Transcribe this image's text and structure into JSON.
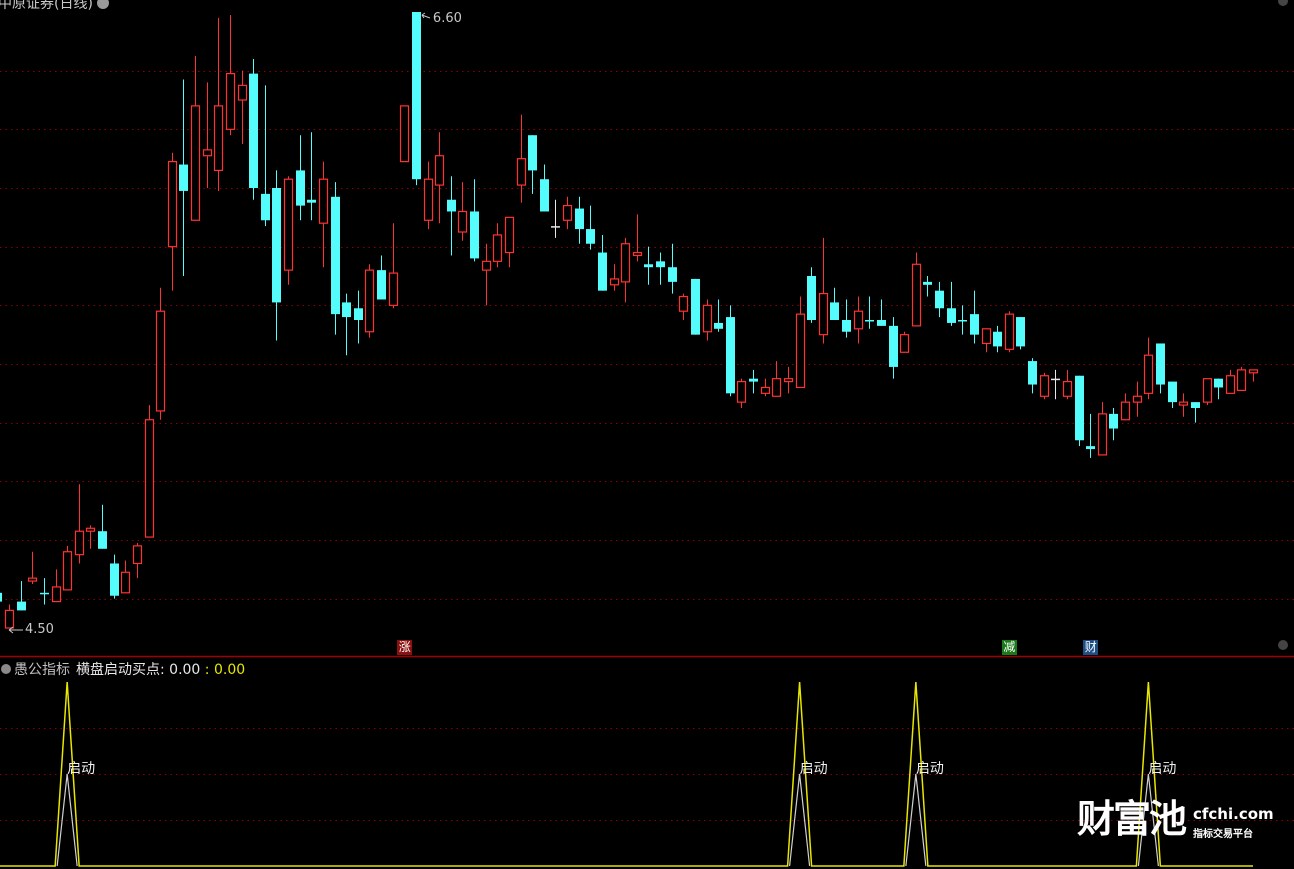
{
  "header": {
    "title": "中原证券(日线)"
  },
  "price_labels": {
    "high": "6.60",
    "low": "4.50"
  },
  "markers": [
    {
      "text": "涨",
      "color": "#8b1010",
      "candle": 36
    },
    {
      "text": "减",
      "color": "#1a7a1a",
      "candle": 88
    },
    {
      "text": "财",
      "color": "#1d4f86",
      "candle": 95
    }
  ],
  "indicator": {
    "name": "愚公指标",
    "label": "横盘启动买点: 0.00",
    "value2": ": 0.00",
    "signal_label": "启动",
    "signal_candles": [
      7,
      70,
      80,
      100
    ]
  },
  "watermark": {
    "brand": "财富池",
    "url": "cfchi.com",
    "tagline": "指标交易平台"
  },
  "colors": {
    "up": "#ff3232",
    "down": "#54fcfc",
    "doji": "#e8e8e8",
    "grid": "#8b0000",
    "signal": "#e6e600",
    "signal_inner": "#d0d0d0"
  },
  "chart_data": {
    "type": "candlestick",
    "ylim": [
      4.5,
      6.6
    ],
    "grid": true,
    "candles_ohlc": [
      [
        4.62,
        4.62,
        4.59,
        4.59
      ],
      [
        4.5,
        4.58,
        4.5,
        4.56
      ],
      [
        4.59,
        4.66,
        4.56,
        4.56
      ],
      [
        4.66,
        4.76,
        4.65,
        4.67
      ],
      [
        4.62,
        4.67,
        4.58,
        4.62
      ],
      [
        4.59,
        4.7,
        4.59,
        4.64
      ],
      [
        4.63,
        4.78,
        4.63,
        4.76
      ],
      [
        4.75,
        4.99,
        4.72,
        4.83
      ],
      [
        4.83,
        4.85,
        4.77,
        4.84
      ],
      [
        4.83,
        4.92,
        4.77,
        4.77
      ],
      [
        4.72,
        4.75,
        4.6,
        4.61
      ],
      [
        4.62,
        4.73,
        4.62,
        4.69
      ],
      [
        4.72,
        4.79,
        4.67,
        4.78
      ],
      [
        4.81,
        5.26,
        4.81,
        5.21
      ],
      [
        5.24,
        5.66,
        5.21,
        5.58
      ],
      [
        5.8,
        6.12,
        5.65,
        6.09
      ],
      [
        6.08,
        6.37,
        5.7,
        5.99
      ],
      [
        5.89,
        6.45,
        5.89,
        6.28
      ],
      [
        6.11,
        6.36,
        6.0,
        6.13
      ],
      [
        6.06,
        6.58,
        5.99,
        6.28
      ],
      [
        6.2,
        6.59,
        6.18,
        6.39
      ],
      [
        6.3,
        6.4,
        6.15,
        6.35
      ],
      [
        6.39,
        6.44,
        5.96,
        6.0
      ],
      [
        5.98,
        6.35,
        5.87,
        5.89
      ],
      [
        6.0,
        6.06,
        5.48,
        5.61
      ],
      [
        5.72,
        6.04,
        5.67,
        6.03
      ],
      [
        6.06,
        6.18,
        5.89,
        5.94
      ],
      [
        5.96,
        6.19,
        5.89,
        5.95
      ],
      [
        5.88,
        6.09,
        5.73,
        6.03
      ],
      [
        5.97,
        6.02,
        5.5,
        5.57
      ],
      [
        5.61,
        5.64,
        5.43,
        5.56
      ],
      [
        5.59,
        5.65,
        5.47,
        5.55
      ],
      [
        5.51,
        5.74,
        5.49,
        5.72
      ],
      [
        5.72,
        5.77,
        5.62,
        5.62
      ],
      [
        5.6,
        5.88,
        5.59,
        5.71
      ],
      [
        6.09,
        6.28,
        6.09,
        6.28
      ],
      [
        6.6,
        6.6,
        6.01,
        6.03
      ],
      [
        5.89,
        6.09,
        5.86,
        6.03
      ],
      [
        6.01,
        6.19,
        5.88,
        6.11
      ],
      [
        5.96,
        6.04,
        5.77,
        5.92
      ],
      [
        5.85,
        6.02,
        5.82,
        5.92
      ],
      [
        5.92,
        6.03,
        5.75,
        5.76
      ],
      [
        5.72,
        5.81,
        5.6,
        5.75
      ],
      [
        5.75,
        5.88,
        5.73,
        5.84
      ],
      [
        5.78,
        5.9,
        5.73,
        5.9
      ],
      [
        6.01,
        6.25,
        5.95,
        6.1
      ],
      [
        6.18,
        6.18,
        5.98,
        6.06
      ],
      [
        6.03,
        6.08,
        5.92,
        5.92
      ],
      [
        5.87,
        5.96,
        5.83,
        5.87
      ],
      [
        5.89,
        5.97,
        5.86,
        5.94
      ],
      [
        5.93,
        5.97,
        5.81,
        5.86
      ],
      [
        5.86,
        5.94,
        5.79,
        5.81
      ],
      [
        5.78,
        5.84,
        5.65,
        5.65
      ],
      [
        5.67,
        5.74,
        5.65,
        5.69
      ],
      [
        5.68,
        5.83,
        5.61,
        5.81
      ],
      [
        5.77,
        5.91,
        5.75,
        5.78
      ],
      [
        5.74,
        5.8,
        5.67,
        5.73
      ],
      [
        5.75,
        5.78,
        5.67,
        5.73
      ],
      [
        5.73,
        5.81,
        5.64,
        5.68
      ],
      [
        5.58,
        5.64,
        5.55,
        5.63
      ],
      [
        5.69,
        5.69,
        5.5,
        5.5
      ],
      [
        5.51,
        5.62,
        5.48,
        5.6
      ],
      [
        5.54,
        5.62,
        5.51,
        5.52
      ],
      [
        5.56,
        5.6,
        5.29,
        5.3
      ],
      [
        5.27,
        5.35,
        5.25,
        5.34
      ],
      [
        5.35,
        5.38,
        5.3,
        5.34
      ],
      [
        5.3,
        5.35,
        5.29,
        5.32
      ],
      [
        5.29,
        5.41,
        5.29,
        5.35
      ],
      [
        5.34,
        5.39,
        5.3,
        5.35
      ],
      [
        5.32,
        5.63,
        5.32,
        5.57
      ],
      [
        5.7,
        5.73,
        5.54,
        5.55
      ],
      [
        5.5,
        5.83,
        5.47,
        5.64
      ],
      [
        5.61,
        5.66,
        5.55,
        5.55
      ],
      [
        5.55,
        5.62,
        5.49,
        5.51
      ],
      [
        5.52,
        5.63,
        5.47,
        5.58
      ],
      [
        5.55,
        5.63,
        5.52,
        5.55
      ],
      [
        5.55,
        5.62,
        5.53,
        5.53
      ],
      [
        5.53,
        5.56,
        5.35,
        5.39
      ],
      [
        5.44,
        5.51,
        5.44,
        5.5
      ],
      [
        5.53,
        5.78,
        5.53,
        5.74
      ],
      [
        5.68,
        5.7,
        5.63,
        5.67
      ],
      [
        5.65,
        5.68,
        5.56,
        5.59
      ],
      [
        5.59,
        5.68,
        5.53,
        5.54
      ],
      [
        5.55,
        5.6,
        5.5,
        5.55
      ],
      [
        5.57,
        5.65,
        5.47,
        5.5
      ],
      [
        5.47,
        5.52,
        5.44,
        5.52
      ],
      [
        5.51,
        5.53,
        5.44,
        5.46
      ],
      [
        5.45,
        5.58,
        5.44,
        5.57
      ],
      [
        5.56,
        5.56,
        5.45,
        5.46
      ],
      [
        5.41,
        5.42,
        5.3,
        5.33
      ],
      [
        5.29,
        5.37,
        5.28,
        5.36
      ],
      [
        5.35,
        5.38,
        5.28,
        5.35
      ],
      [
        5.29,
        5.38,
        5.28,
        5.34
      ],
      [
        5.36,
        5.36,
        5.12,
        5.14
      ],
      [
        5.12,
        5.23,
        5.08,
        5.11
      ],
      [
        5.09,
        5.27,
        5.09,
        5.23
      ],
      [
        5.23,
        5.25,
        5.14,
        5.18
      ],
      [
        5.21,
        5.3,
        5.21,
        5.27
      ],
      [
        5.27,
        5.34,
        5.22,
        5.29
      ],
      [
        5.3,
        5.49,
        5.28,
        5.43
      ],
      [
        5.47,
        5.47,
        5.3,
        5.33
      ],
      [
        5.34,
        5.34,
        5.25,
        5.27
      ],
      [
        5.26,
        5.3,
        5.22,
        5.27
      ],
      [
        5.27,
        5.27,
        5.2,
        5.25
      ],
      [
        5.27,
        5.35,
        5.26,
        5.35
      ],
      [
        5.35,
        5.35,
        5.28,
        5.32
      ],
      [
        5.3,
        5.38,
        5.3,
        5.36
      ],
      [
        5.31,
        5.39,
        5.31,
        5.38
      ],
      [
        5.37,
        5.38,
        5.34,
        5.38
      ]
    ],
    "doji_white": [
      49,
      92
    ],
    "indicator_ylim": [
      0,
      1
    ],
    "indicator_series": [
      {
        "role": "outer",
        "peak": 1.0
      },
      {
        "role": "inner",
        "peak": 0.5
      }
    ]
  }
}
